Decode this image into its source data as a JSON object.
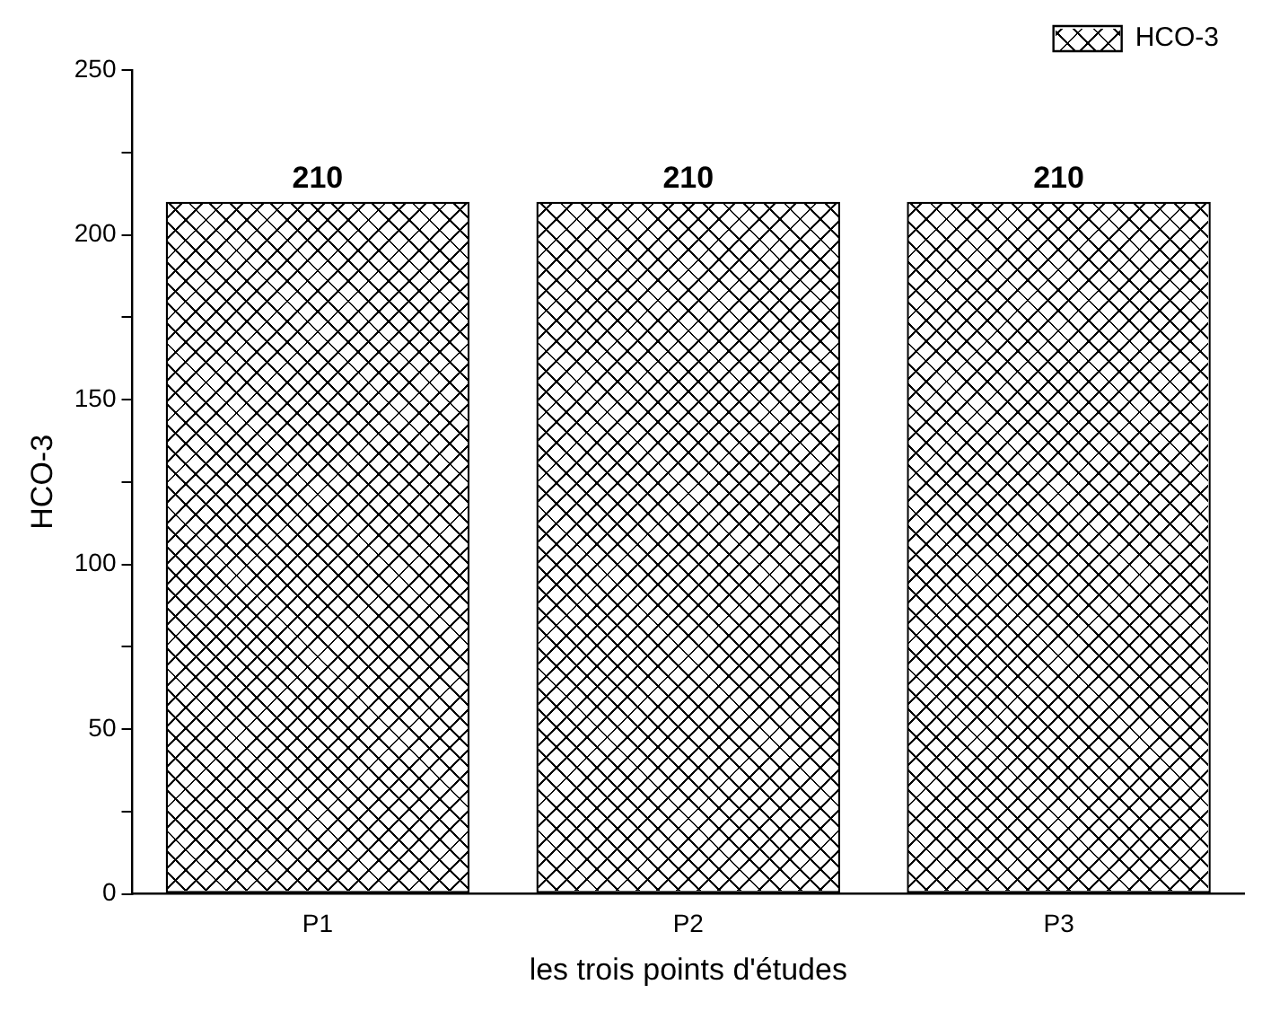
{
  "chart_data": {
    "type": "bar",
    "xlabel": "les trois points d'études",
    "ylabel": "HCO-3",
    "categories": [
      "P1",
      "P2",
      "P3"
    ],
    "series": [
      {
        "name": "HCO-3",
        "color": "#ffffff",
        "values": [
          210,
          210,
          210
        ]
      }
    ],
    "ylim": [
      0,
      250
    ],
    "yticks": [
      0,
      {
        "value": 25,
        "label": null
      },
      50,
      {
        "value": 75,
        "label": null
      },
      100,
      {
        "value": 125,
        "label": null
      },
      150,
      {
        "value": 175,
        "label": null
      },
      200,
      {
        "value": 225,
        "label": null
      },
      250
    ],
    "data_labels": true,
    "legend": "top right",
    "grid": false
  }
}
